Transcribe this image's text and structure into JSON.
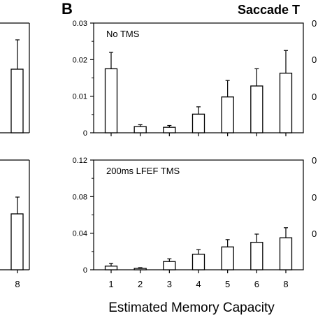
{
  "figure": {
    "panel_label": "B",
    "header_fragment": "Saccade T",
    "left_fragment_tick": "8",
    "right_fragments_top": [
      "0",
      "0",
      "0"
    ],
    "right_fragments_bottom": [
      "0",
      "0",
      "0"
    ],
    "xlabel": "Estimated Memory Capacity"
  },
  "chart_data": [
    {
      "type": "bar",
      "annotation": "No TMS",
      "categories": [
        "1",
        "2",
        "3",
        "4",
        "5",
        "6",
        "8"
      ],
      "values": [
        0.0175,
        0.0017,
        0.0015,
        0.0051,
        0.0098,
        0.0128,
        0.0163
      ],
      "error": [
        0.0045,
        0.0005,
        0.0005,
        0.002,
        0.0045,
        0.0047,
        0.0062
      ],
      "ylim": [
        0,
        0.03
      ],
      "yticks": [
        "0",
        "0.01",
        "0.02",
        "0.03"
      ],
      "yticks_values": [
        0,
        0.01,
        0.02,
        0.03
      ]
    },
    {
      "type": "bar",
      "annotation": "200ms LFEF TMS",
      "categories": [
        "1",
        "2",
        "3",
        "4",
        "5",
        "6",
        "8"
      ],
      "values": [
        0.004,
        0.0015,
        0.009,
        0.017,
        0.025,
        0.03,
        0.035
      ],
      "error": [
        0.003,
        0.0008,
        0.003,
        0.005,
        0.008,
        0.009,
        0.011
      ],
      "ylim": [
        0,
        0.12
      ],
      "yticks": [
        "0",
        "0.04",
        "0.08",
        "0.12"
      ],
      "yticks_values": [
        0,
        0.04,
        0.08,
        0.12
      ]
    }
  ]
}
